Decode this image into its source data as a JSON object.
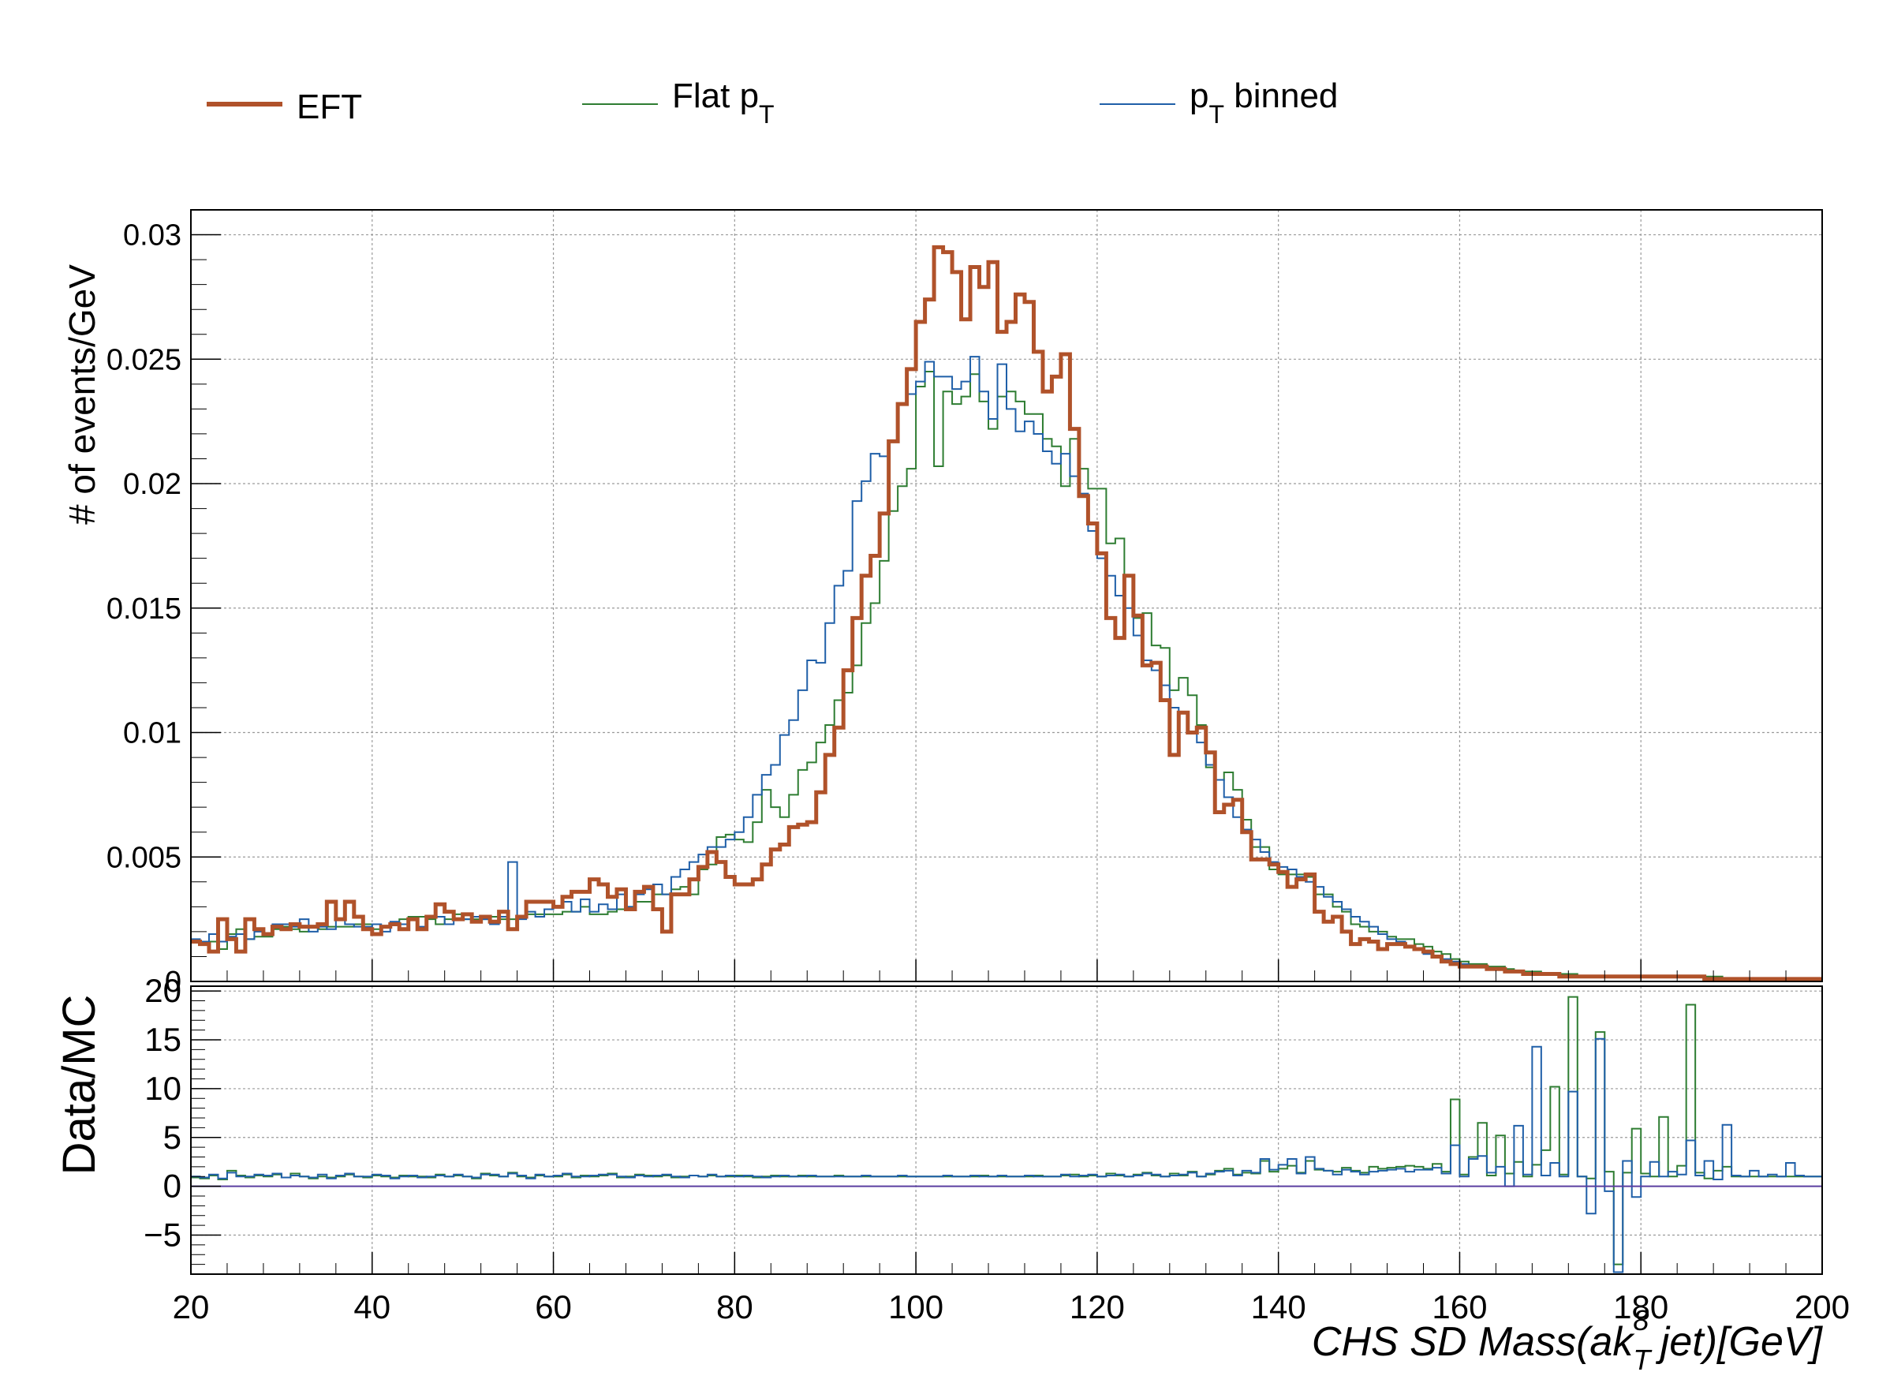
{
  "legend": [
    {
      "label": "EFT",
      "sub": "",
      "suffix": "",
      "color": "#b0522a",
      "width": 6
    },
    {
      "label": "Flat p",
      "sub": "T",
      "suffix": "",
      "color": "#2e7d32",
      "width": 2
    },
    {
      "label": "p",
      "sub": "T",
      "suffix": " binned",
      "color": "#1f5fa8",
      "width": 2
    }
  ],
  "axes": {
    "ylabel_top": "# of events/GeV",
    "ylabel_bottom": "Data/MC",
    "xlabel_main": "CHS   SD   Mass(ak",
    "xlabel_sub": "T",
    "xlabel_sup": "8",
    "xlabel_tail": "   jet)[GeV]",
    "x_ticks": [
      "20",
      "40",
      "60",
      "80",
      "100",
      "120",
      "140",
      "160",
      "180",
      "200"
    ],
    "y_ticks_top": [
      "0",
      "0.005",
      "0.01",
      "0.015",
      "0.02",
      "0.025",
      "0.03"
    ],
    "y_ticks_bottom": [
      "−5",
      "0",
      "5",
      "10",
      "15",
      "20"
    ]
  },
  "chart_data": [
    {
      "type": "histogram",
      "title": "",
      "xlabel": "CHS SD Mass(ak_T^8 jet)[GeV]",
      "ylabel": "# of events/GeV",
      "xlim": [
        20,
        200
      ],
      "ylim": [
        0,
        0.031
      ],
      "grid": true,
      "legend_position": "top",
      "bin_start": 20,
      "bin_width": 1,
      "series": [
        {
          "name": "EFT",
          "color": "#b0522a",
          "values": [
            0.0016,
            0.0015,
            0.0012,
            0.0025,
            0.0017,
            0.0012,
            0.0025,
            0.0021,
            0.0019,
            0.0022,
            0.0021,
            0.0023,
            0.0022,
            0.0022,
            0.0023,
            0.0032,
            0.0025,
            0.0032,
            0.0026,
            0.0021,
            0.0019,
            0.0022,
            0.0023,
            0.0021,
            0.0025,
            0.0021,
            0.0026,
            0.0031,
            0.0028,
            0.0025,
            0.0027,
            0.0024,
            0.0026,
            0.0024,
            0.0028,
            0.0021,
            0.0026,
            0.0032,
            0.0032,
            0.0032,
            0.003,
            0.0034,
            0.0036,
            0.0036,
            0.0041,
            0.0039,
            0.0034,
            0.0037,
            0.0029,
            0.0036,
            0.0038,
            0.0029,
            0.002,
            0.0035,
            0.0035,
            0.0041,
            0.0046,
            0.0052,
            0.0048,
            0.0042,
            0.0039,
            0.0039,
            0.0041,
            0.0047,
            0.0053,
            0.0055,
            0.0062,
            0.0063,
            0.0064,
            0.0076,
            0.0091,
            0.0102,
            0.0125,
            0.0146,
            0.0163,
            0.0171,
            0.0188,
            0.0217,
            0.0232,
            0.0246,
            0.0265,
            0.0274,
            0.0295,
            0.0293,
            0.0285,
            0.0266,
            0.0287,
            0.0279,
            0.0289,
            0.0261,
            0.0265,
            0.0276,
            0.0273,
            0.0253,
            0.0237,
            0.0243,
            0.0252,
            0.0222,
            0.0195,
            0.0184,
            0.0172,
            0.0146,
            0.0138,
            0.0163,
            0.0147,
            0.0127,
            0.0128,
            0.0113,
            0.0091,
            0.0108,
            0.01,
            0.0102,
            0.0092,
            0.0068,
            0.0071,
            0.0073,
            0.006,
            0.0049,
            0.0049,
            0.0047,
            0.0044,
            0.0038,
            0.0041,
            0.0043,
            0.0028,
            0.0024,
            0.0026,
            0.002,
            0.0015,
            0.0017,
            0.0016,
            0.0013,
            0.0015,
            0.0015,
            0.0014,
            0.0013,
            0.0012,
            0.001,
            0.0008,
            0.0007,
            0.0006,
            0.0006,
            0.0006,
            0.0005,
            0.0005,
            0.0004,
            0.0004,
            0.0003,
            0.0003,
            0.0003,
            0.0003,
            0.0002,
            0.0002,
            0.0002,
            0.0002,
            0.0002,
            0.0002,
            0.0002,
            0.0002,
            0.0002,
            0.0002,
            0.0002,
            0.0002,
            0.0002,
            0.0002,
            0.0002,
            0.0002,
            0.0001,
            0.0001,
            0.0001,
            0.0001,
            0.0001,
            0.0001,
            0.0001,
            0.0001,
            0.0001,
            0.0001,
            0.0001,
            0.0001,
            0.0001,
            0.0001,
            0.0001,
            0.0001,
            0.0001,
            0.0001,
            0.0001,
            0.0001,
            0.0001
          ]
        },
        {
          "name": "Flat p_T",
          "color": "#2e7d32",
          "values": [
            0.0016,
            0.0016,
            0.0016,
            0.0013,
            0.0019,
            0.0021,
            0.0017,
            0.0018,
            0.0018,
            0.0021,
            0.0022,
            0.0021,
            0.002,
            0.0022,
            0.0021,
            0.0022,
            0.0022,
            0.0022,
            0.0023,
            0.0023,
            0.0021,
            0.0022,
            0.0023,
            0.0025,
            0.0026,
            0.0026,
            0.0025,
            0.0023,
            0.0025,
            0.0027,
            0.0025,
            0.0025,
            0.0025,
            0.0026,
            0.0025,
            0.0025,
            0.0026,
            0.0027,
            0.0027,
            0.0027,
            0.0027,
            0.0028,
            0.0028,
            0.003,
            0.0027,
            0.0027,
            0.0028,
            0.0029,
            0.003,
            0.0032,
            0.0032,
            0.0035,
            0.0035,
            0.0037,
            0.0038,
            0.0035,
            0.0045,
            0.0047,
            0.0058,
            0.0059,
            0.0057,
            0.0056,
            0.0064,
            0.0077,
            0.007,
            0.0066,
            0.0075,
            0.0085,
            0.0088,
            0.0096,
            0.0103,
            0.0113,
            0.0116,
            0.0127,
            0.0144,
            0.0152,
            0.0169,
            0.0189,
            0.0199,
            0.0206,
            0.0239,
            0.0245,
            0.0207,
            0.0237,
            0.0232,
            0.0235,
            0.0244,
            0.0233,
            0.0222,
            0.0235,
            0.0237,
            0.0233,
            0.0228,
            0.0228,
            0.0218,
            0.0215,
            0.0199,
            0.0218,
            0.0206,
            0.0198,
            0.0198,
            0.0176,
            0.0178,
            0.0163,
            0.0146,
            0.0148,
            0.0135,
            0.0134,
            0.0117,
            0.0122,
            0.0115,
            0.0103,
            0.0086,
            0.0081,
            0.0084,
            0.0077,
            0.0065,
            0.0054,
            0.0054,
            0.0045,
            0.0043,
            0.0043,
            0.0043,
            0.0042,
            0.0035,
            0.0035,
            0.003,
            0.0028,
            0.0023,
            0.0022,
            0.002,
            0.002,
            0.0018,
            0.0017,
            0.0017,
            0.0015,
            0.0014,
            0.0012,
            0.0011,
            0.0009,
            0.0008,
            0.0007,
            0.0007,
            0.0006,
            0.0006,
            0.0005,
            0.0004,
            0.0004,
            0.0004,
            0.0003,
            0.0003,
            0.0003,
            0.0003,
            0.0002,
            0.0002,
            0.0002,
            0.0002,
            0.0002,
            0.0002,
            0.0002,
            0.0002,
            0.0002,
            0.0002,
            0.0002,
            0.0002,
            0.0002,
            0.0002,
            0.0002,
            0.0002,
            0.0001,
            0.0001,
            0.0001,
            0.0001,
            0.0001,
            0.0001,
            0.0001,
            0.0001,
            0.0001,
            0.0001,
            0.0001,
            0.0001,
            0.0001,
            0.0001,
            0.0001,
            0.0001,
            0.0001,
            0.0001,
            0.0001,
            0.0001
          ]
        },
        {
          "name": "p_T binned",
          "color": "#1f5fa8",
          "values": [
            0.0017,
            0.0016,
            0.0019,
            0.0016,
            0.0018,
            0.0019,
            0.0017,
            0.002,
            0.0019,
            0.0023,
            0.0023,
            0.0022,
            0.0025,
            0.002,
            0.0022,
            0.0021,
            0.0025,
            0.0023,
            0.0022,
            0.0022,
            0.0023,
            0.002,
            0.0024,
            0.0023,
            0.0025,
            0.0022,
            0.0026,
            0.0026,
            0.0023,
            0.0025,
            0.0025,
            0.0026,
            0.0025,
            0.0023,
            0.0026,
            0.0048,
            0.0025,
            0.0028,
            0.0026,
            0.0029,
            0.003,
            0.0032,
            0.0028,
            0.0033,
            0.0028,
            0.0031,
            0.0029,
            0.0035,
            0.003,
            0.0035,
            0.0037,
            0.0039,
            0.0035,
            0.0042,
            0.0045,
            0.0048,
            0.0051,
            0.0054,
            0.0054,
            0.0057,
            0.006,
            0.0066,
            0.0075,
            0.0083,
            0.0087,
            0.0099,
            0.0105,
            0.0117,
            0.0129,
            0.0128,
            0.0144,
            0.0159,
            0.0165,
            0.0193,
            0.0201,
            0.0212,
            0.0211,
            0.0217,
            0.0232,
            0.0236,
            0.0241,
            0.0249,
            0.0243,
            0.0243,
            0.0238,
            0.0241,
            0.0251,
            0.0237,
            0.0226,
            0.0248,
            0.023,
            0.0221,
            0.0225,
            0.022,
            0.0213,
            0.0208,
            0.0212,
            0.0203,
            0.0196,
            0.0181,
            0.017,
            0.0163,
            0.0155,
            0.015,
            0.0139,
            0.0129,
            0.0125,
            0.0119,
            0.011,
            0.0108,
            0.01,
            0.0096,
            0.0087,
            0.0081,
            0.0074,
            0.0066,
            0.0061,
            0.0057,
            0.0052,
            0.0048,
            0.0046,
            0.0045,
            0.0042,
            0.004,
            0.0038,
            0.0034,
            0.0032,
            0.0029,
            0.0026,
            0.0024,
            0.0022,
            0.0019,
            0.0017,
            0.0016,
            0.0014,
            0.0013,
            0.0011,
            0.001,
            0.0009,
            0.0008,
            0.0007,
            0.0006,
            0.0006,
            0.0005,
            0.0005,
            0.0004,
            0.0004,
            0.0003,
            0.0003,
            0.0003,
            0.0003,
            0.0002,
            0.0002,
            0.0002,
            0.0002,
            0.0002,
            0.0002,
            0.0002,
            0.0002,
            0.0002,
            0.0002,
            0.0002,
            0.0002,
            0.0002,
            0.0002,
            0.0002,
            0.0002,
            0.0001,
            0.0001,
            0.0001,
            0.0001,
            0.0001,
            0.0001,
            0.0001,
            0.0001,
            0.0001,
            0.0001,
            0.0001,
            0.0001,
            0.0001,
            0.0001,
            0.0001,
            0.0001,
            0.0001,
            0.0001,
            0.0001,
            0.0001,
            0.0001
          ]
        }
      ]
    },
    {
      "type": "histogram",
      "title": "",
      "xlabel": "",
      "ylabel": "Data/MC",
      "xlim": [
        20,
        200
      ],
      "ylim": [
        -9,
        20.5
      ],
      "grid": true,
      "reference_line": 0,
      "bin_start": 20,
      "bin_width": 1,
      "series": [
        {
          "name": "",
          "color": "#2e7d32",
          "values": [
            0.9,
            0.8,
            1.1,
            0.7,
            1.6,
            1.1,
            0.9,
            1.1,
            1.0,
            1.2,
            0.9,
            1.3,
            1.0,
            0.8,
            1.0,
            0.9,
            1.0,
            1.2,
            1.0,
            0.9,
            1.1,
            1.0,
            0.9,
            1.1,
            1.0,
            1.0,
            0.9,
            1.2,
            1.0,
            1.1,
            1.0,
            0.8,
            1.3,
            1.1,
            1.0,
            1.4,
            1.0,
            0.9,
            1.1,
            1.0,
            1.0,
            1.2,
            0.9,
            1.1,
            1.0,
            1.1,
            1.3,
            0.9,
            1.0,
            1.2,
            1.1,
            1.0,
            1.1,
            0.9,
            1.0,
            1.1,
            1.0,
            1.1,
            1.0,
            1.0,
            1.1,
            1.0,
            0.9,
            1.0,
            1.1,
            1.0,
            1.0,
            1.1,
            1.0,
            1.0,
            1.0,
            1.1,
            1.0,
            1.0,
            1.0,
            1.0,
            1.0,
            1.0,
            1.0,
            1.0,
            1.0,
            1.0,
            1.0,
            1.0,
            1.0,
            1.0,
            1.0,
            1.1,
            1.0,
            1.0,
            1.0,
            1.0,
            1.0,
            1.1,
            1.0,
            1.0,
            1.1,
            1.2,
            1.0,
            1.1,
            1.0,
            1.3,
            1.1,
            1.0,
            1.2,
            1.4,
            1.1,
            1.0,
            1.3,
            1.1,
            1.5,
            1.0,
            1.2,
            1.6,
            1.8,
            1.2,
            1.4,
            1.3,
            2.6,
            1.5,
            1.8,
            2.1,
            1.4,
            2.6,
            1.7,
            1.6,
            1.5,
            1.9,
            1.6,
            1.4,
            2.0,
            1.8,
            1.9,
            2.0,
            2.1,
            2.0,
            1.8,
            2.3,
            1.5,
            8.9,
            1.2,
            3.0,
            6.5,
            1.1,
            5.2,
            1.3,
            2.5,
            1.0,
            2.2,
            3.7,
            10.2,
            1.2,
            19.4,
            1.0,
            0.8,
            15.8,
            1.5,
            -8.0,
            1.4,
            5.9,
            1.3,
            1.0,
            7.1,
            1.0,
            2.1,
            18.6,
            1.4,
            0.8,
            1.6,
            2.0,
            1.0,
            1.0,
            1.0,
            1.0,
            1.0,
            1.0,
            1.0,
            1.0,
            1.0,
            1.0,
            1.0,
            1.0,
            1.0,
            1.0,
            1.0,
            1.0,
            1.0,
            1.0,
            1.0
          ]
        },
        {
          "name": "",
          "color": "#1f5fa8",
          "values": [
            1.0,
            0.9,
            1.2,
            0.8,
            1.4,
            1.0,
            1.0,
            1.2,
            1.1,
            1.3,
            0.9,
            1.1,
            1.0,
            0.9,
            1.2,
            0.8,
            1.1,
            1.3,
            1.0,
            1.0,
            1.2,
            1.1,
            0.8,
            1.0,
            1.1,
            0.9,
            1.0,
            1.1,
            1.0,
            1.2,
            1.0,
            0.9,
            1.2,
            1.2,
            1.0,
            1.3,
            1.1,
            0.8,
            1.2,
            1.0,
            1.1,
            1.3,
            1.0,
            1.0,
            1.1,
            1.2,
            1.2,
            1.0,
            0.9,
            1.1,
            1.0,
            1.1,
            1.2,
            1.0,
            0.9,
            1.1,
            1.0,
            1.2,
            1.0,
            1.1,
            1.0,
            1.1,
            1.0,
            0.9,
            1.0,
            1.1,
            1.0,
            1.0,
            1.1,
            1.0,
            1.0,
            1.0,
            1.0,
            1.0,
            1.1,
            1.0,
            1.0,
            1.0,
            1.1,
            1.0,
            1.0,
            1.0,
            1.0,
            1.1,
            1.0,
            1.0,
            1.1,
            1.0,
            1.0,
            1.1,
            1.0,
            1.0,
            1.1,
            1.0,
            1.0,
            1.0,
            1.2,
            1.0,
            1.1,
            1.2,
            1.0,
            1.1,
            1.2,
            1.0,
            1.1,
            1.3,
            1.2,
            1.0,
            1.1,
            1.2,
            1.4,
            1.0,
            1.3,
            1.5,
            1.6,
            1.1,
            1.6,
            1.4,
            2.8,
            1.7,
            2.2,
            2.8,
            1.3,
            3.0,
            1.8,
            1.6,
            1.2,
            1.7,
            1.5,
            1.2,
            1.5,
            1.6,
            1.7,
            1.8,
            1.5,
            1.7,
            1.7,
            1.9,
            1.3,
            4.2,
            1.0,
            2.8,
            3.1,
            1.4,
            2.0,
            0.0,
            6.2,
            1.2,
            14.3,
            1.1,
            2.4,
            1.0,
            9.7,
            1.0,
            -2.8,
            15.1,
            -0.5,
            -8.8,
            2.6,
            -1.1,
            1.0,
            2.5,
            1.0,
            1.5,
            1.2,
            4.7,
            1.1,
            2.6,
            0.7,
            6.3,
            1.1,
            1.0,
            1.6,
            1.0,
            1.2,
            1.0,
            2.4,
            1.1,
            1.0,
            1.0,
            2.4,
            1.0,
            1.0,
            1.0,
            1.0,
            1.0,
            1.0,
            1.0,
            1.0,
            1.0,
            1.0,
            1.0,
            1.4
          ]
        }
      ]
    }
  ]
}
